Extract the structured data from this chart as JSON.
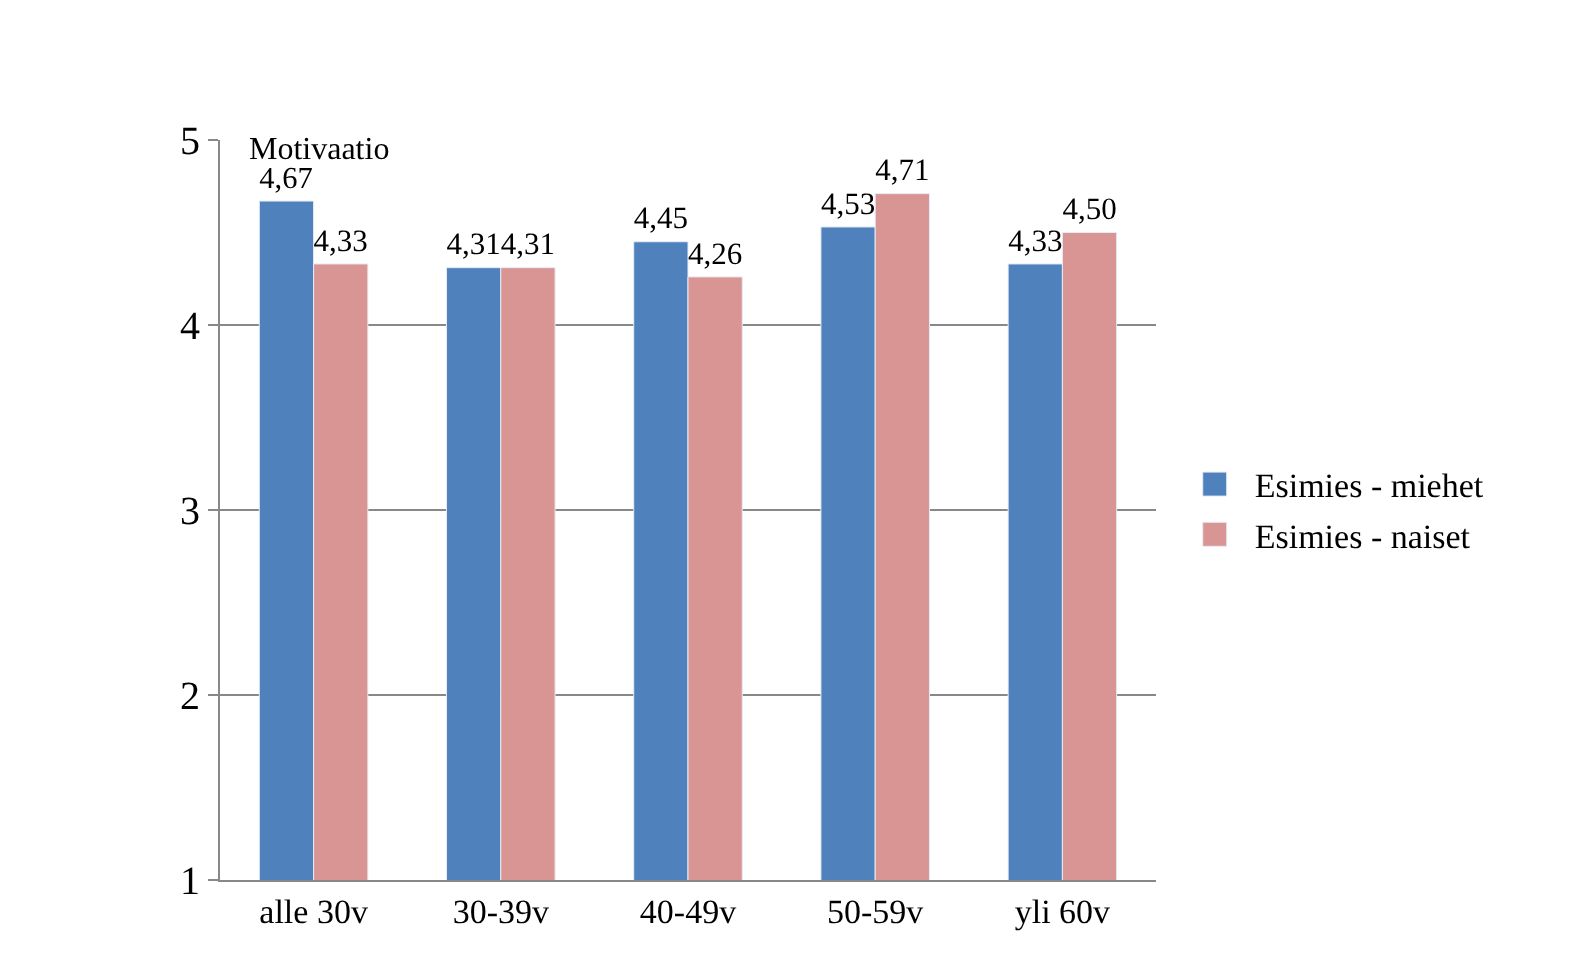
{
  "chart_data": {
    "type": "bar",
    "title": "Motivaatio",
    "categories": [
      "alle 30v",
      "30-39v",
      "40-49v",
      "50-59v",
      "yli 60v"
    ],
    "series": [
      {
        "name": "Esimies - miehet",
        "color": "#4f81bd",
        "values": [
          4.67,
          4.31,
          4.45,
          4.53,
          4.33
        ],
        "value_labels": [
          "4,67",
          "4,31",
          "4,45",
          "4,53",
          "4,33"
        ]
      },
      {
        "name": "Esimies - naiset",
        "color": "#d99594",
        "values": [
          4.33,
          4.31,
          4.26,
          4.71,
          4.5
        ],
        "value_labels": [
          "4,33",
          "4,31",
          "4,26",
          "4,71",
          "4,50"
        ]
      }
    ],
    "ylim": [
      1,
      5
    ],
    "yticks": [
      1,
      2,
      3,
      4,
      5
    ],
    "grid": "y",
    "legend": "right"
  }
}
